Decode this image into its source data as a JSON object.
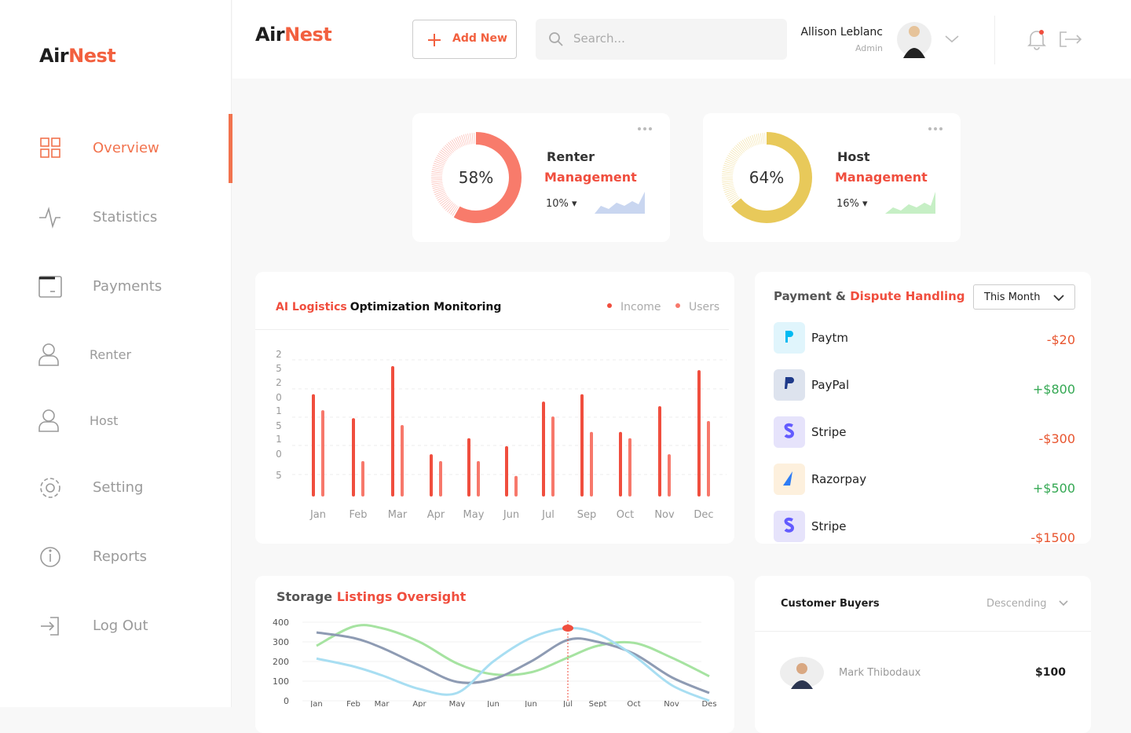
{
  "brand": {
    "first": "Air",
    "second": "Nest"
  },
  "sidebar": {
    "items": [
      "Overview",
      "Statistics",
      "Payments",
      "Renter",
      "Host",
      "Setting",
      "Reports",
      "Log Out"
    ],
    "active": 0
  },
  "header": {
    "add_button": "Add New",
    "search_placeholder": "Search...",
    "user": {
      "name": "Allison Leblanc",
      "role": "Admin"
    }
  },
  "cards": [
    {
      "percent": {
        "value": 58,
        "label": "58%"
      },
      "title": "Renter",
      "subtitle": "Management",
      "change": "10%",
      "color": "#f87b6b"
    },
    {
      "percent": {
        "value": 64,
        "label": "64%"
      },
      "title": "Host",
      "subtitle": "Management",
      "change": "16%",
      "color": "#e8c95a"
    }
  ],
  "logistics_chart": {
    "type": "bar",
    "title": {
      "highlight": "AI Logistics",
      "rest": "Optimization Monitoring"
    },
    "y_axis_labels": [
      "2",
      "5",
      "2",
      "0",
      "1",
      "5",
      "1",
      "0",
      "5"
    ],
    "categories": [
      "Jan",
      "Feb",
      "Mar",
      "Apr",
      "May",
      "Jun",
      "Jul",
      "Sep",
      "Oct",
      "Nov",
      "Dec"
    ],
    "ylim": [
      0,
      25
    ],
    "series": [
      {
        "name": "Income",
        "color": "#f04e3e",
        "values": [
          17.9,
          13.7,
          22.8,
          7.4,
          10.2,
          8.8,
          16.6,
          17.9,
          11.3,
          15.8,
          22.1
        ]
      },
      {
        "name": "Users",
        "color": "#f7786b",
        "values": [
          15.1,
          6.2,
          12.5,
          6.2,
          6.2,
          3.6,
          14.0,
          11.3,
          10.2,
          7.4,
          13.2
        ]
      }
    ]
  },
  "payments": {
    "title": {
      "first": "Payment &",
      "highlight": "Dispute Handling"
    },
    "filter": "This Month",
    "items": [
      {
        "name": "Paytm",
        "amount": "-$20"
      },
      {
        "name": "PayPal",
        "amount": "+$800"
      },
      {
        "name": "Stripe",
        "amount": "-$300"
      },
      {
        "name": "Razorpay",
        "amount": "+$500"
      },
      {
        "name": "Stripe",
        "amount": "-$1500"
      }
    ]
  },
  "storage_chart": {
    "type": "line",
    "title": {
      "first": "Storage",
      "highlight": "Listings Oversight"
    },
    "categories": [
      "Jan",
      "Feb",
      "Mar",
      "Apr",
      "May",
      "Jun",
      "Jun",
      "Jul",
      "Sept",
      "Oct",
      "Nov",
      "Des"
    ],
    "ylim": [
      0,
      400
    ],
    "yticks": [
      0,
      100,
      200,
      300,
      400
    ],
    "series": [
      {
        "color": "#a6e3a1",
        "values": [
          280,
          378,
          370,
          300,
          190,
          135,
          145,
          220,
          280,
          295,
          220,
          125
        ]
      },
      {
        "color": "#8e9bb3",
        "values": [
          348,
          320,
          270,
          180,
          96,
          110,
          200,
          310,
          300,
          240,
          120,
          40
        ]
      },
      {
        "color": "#a8def2",
        "values": [
          215,
          175,
          130,
          60,
          40,
          200,
          320,
          370,
          340,
          230,
          80,
          0
        ]
      }
    ]
  },
  "customers": {
    "title": "Customer Buyers",
    "sort": "Descending",
    "rows": [
      {
        "name": "Mark Thibodaux",
        "amount": "$100"
      }
    ]
  }
}
